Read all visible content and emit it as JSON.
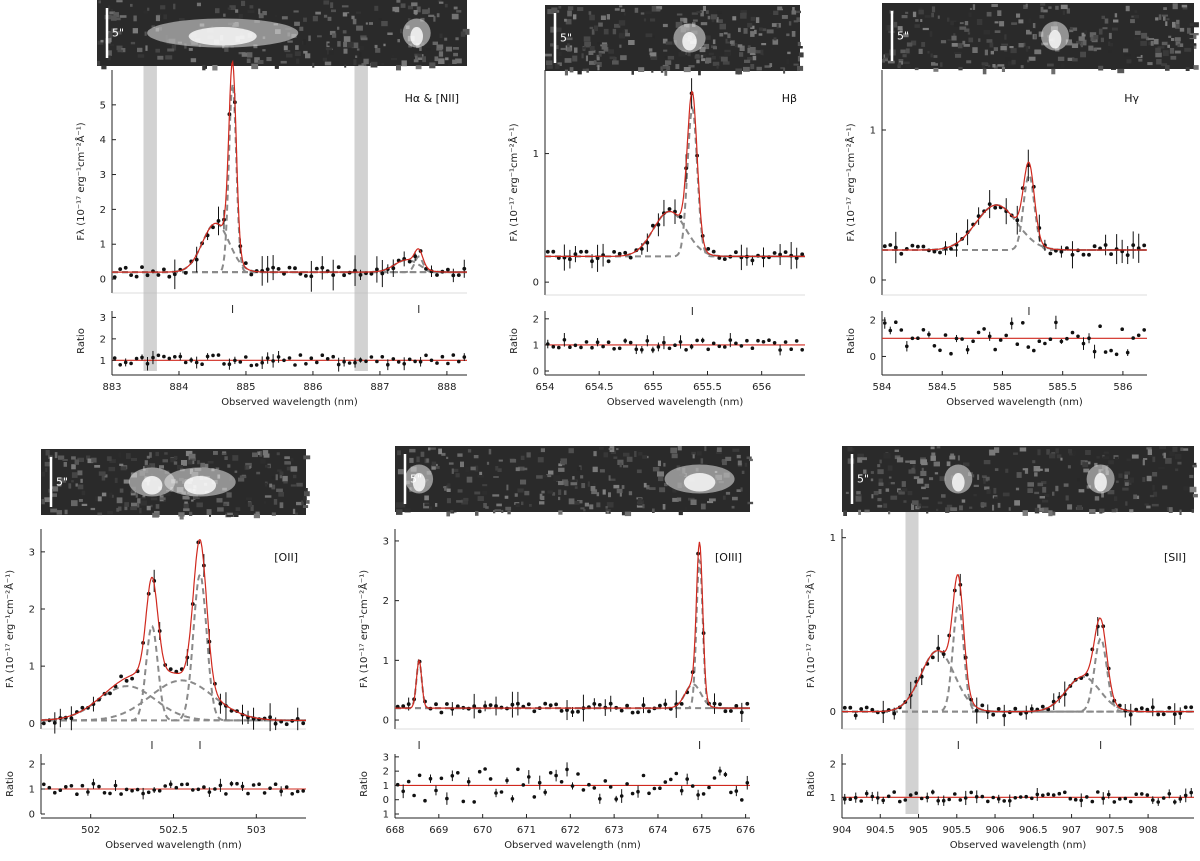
{
  "colors": {
    "fit": "#d0281e",
    "component": "#8a8a8a",
    "points": "#111111",
    "mask": "#d2d2d2",
    "frame": "#222222"
  },
  "chart_data": [
    {
      "type": "line",
      "line_label": "Hα & [NII]",
      "scale_label": "5\"",
      "xlabel": "Observed wavelength (nm)",
      "ylabel": "Fλ (10⁻¹⁷ erg⁻¹cm⁻²Å⁻¹)",
      "ratio_label": "Ratio",
      "xlim": [
        883.0,
        888.3
      ],
      "ylim": [
        -0.4,
        6.0
      ],
      "ratio_ylim": [
        0.5,
        3.3
      ],
      "x_ticks": [
        883,
        884,
        885,
        886,
        887,
        888
      ],
      "y_ticks": [
        0,
        1,
        2,
        3,
        4,
        5
      ],
      "ratio_ticks": [
        1,
        2,
        3
      ],
      "continuum": 0.2,
      "masked_regions": [
        [
          883.47,
          883.67
        ],
        [
          886.62,
          886.82
        ]
      ],
      "components": [
        {
          "center": 884.8,
          "amplitude": 5.4,
          "sigma": 0.055
        },
        {
          "center": 884.55,
          "amplitude": 1.4,
          "sigma": 0.2
        },
        {
          "center": 887.58,
          "amplitude": 0.45,
          "sigma": 0.06
        },
        {
          "center": 887.4,
          "amplitude": 0.35,
          "sigma": 0.18
        }
      ]
    },
    {
      "type": "line",
      "line_label": "Hβ",
      "scale_label": "5\"",
      "xlabel": "Observed wavelength (nm)",
      "ylabel": "Fλ (10⁻¹⁷ erg⁻¹cm⁻²Å⁻¹)",
      "ratio_label": "Ratio",
      "xlim": [
        654.0,
        656.4
      ],
      "ylim": [
        -0.1,
        1.65
      ],
      "ratio_ylim": [
        0.0,
        2.3
      ],
      "x_ticks": [
        654,
        654.5,
        655,
        655.5,
        656
      ],
      "y_ticks": [
        0,
        1
      ],
      "ratio_ticks": [
        0,
        1,
        2
      ],
      "continuum": 0.2,
      "masked_regions": [],
      "components": [
        {
          "center": 655.36,
          "amplitude": 1.15,
          "sigma": 0.045
        },
        {
          "center": 655.15,
          "amplitude": 0.35,
          "sigma": 0.15
        }
      ]
    },
    {
      "type": "line",
      "line_label": "Hγ",
      "scale_label": "5\"",
      "xlabel": "Observed wavelength (nm)",
      "ylabel": "Fλ (10⁻¹⁷ erg⁻¹cm⁻²Å⁻¹)",
      "ratio_label": "Ratio",
      "xlim": [
        584.0,
        586.2
      ],
      "ylim": [
        -0.1,
        1.4
      ],
      "ratio_ylim": [
        -0.8,
        2.5
      ],
      "x_ticks": [
        584,
        584.5,
        585,
        585.5,
        586
      ],
      "y_ticks": [
        0,
        1
      ],
      "ratio_ticks": [
        0,
        2
      ],
      "continuum": 0.2,
      "masked_regions": [],
      "components": [
        {
          "center": 585.22,
          "amplitude": 0.5,
          "sigma": 0.045
        },
        {
          "center": 584.95,
          "amplitude": 0.3,
          "sigma": 0.17
        }
      ]
    },
    {
      "type": "line",
      "line_label": "[OII]",
      "scale_label": "5\"",
      "xlabel": "Observed wavelength (nm)",
      "ylabel": "Fλ (10⁻¹⁷ erg⁻¹cm⁻²Å⁻¹)",
      "ratio_label": "Ratio",
      "xlim": [
        501.7,
        503.3
      ],
      "ylim": [
        -0.1,
        3.4
      ],
      "ratio_ylim": [
        0.0,
        2.4
      ],
      "x_ticks": [
        502,
        502.5,
        503
      ],
      "y_ticks": [
        0,
        1,
        2,
        3
      ],
      "ratio_ticks": [
        0,
        1,
        2
      ],
      "continuum": 0.05,
      "masked_regions": [],
      "components": [
        {
          "center": 502.37,
          "amplitude": 1.65,
          "sigma": 0.035
        },
        {
          "center": 502.66,
          "amplitude": 2.55,
          "sigma": 0.04
        },
        {
          "center": 502.22,
          "amplitude": 0.6,
          "sigma": 0.17
        },
        {
          "center": 502.55,
          "amplitude": 0.7,
          "sigma": 0.19
        }
      ]
    },
    {
      "type": "line",
      "line_label": "[OIII]",
      "scale_label": "5\"",
      "xlabel": "Observed wavelength (nm)",
      "ylabel": "Fλ (10⁻¹⁷ erg⁻¹cm⁻²Å⁻¹)",
      "ratio_label": "Ratio",
      "xlim": [
        668.0,
        676.1
      ],
      "ylim": [
        -0.15,
        3.2
      ],
      "ratio_ylim": [
        -1.0,
        3.2
      ],
      "x_ticks": [
        668,
        669,
        670,
        671,
        672,
        673,
        674,
        675,
        676
      ],
      "y_ticks": [
        0,
        1,
        2,
        3
      ],
      "ratio_ticks": [
        1,
        0,
        1,
        2,
        3
      ],
      "continuum": 0.2,
      "masked_regions": [],
      "components": [
        {
          "center": 668.55,
          "amplitude": 0.8,
          "sigma": 0.06
        },
        {
          "center": 674.95,
          "amplitude": 2.5,
          "sigma": 0.07
        },
        {
          "center": 674.8,
          "amplitude": 0.4,
          "sigma": 0.18
        }
      ]
    },
    {
      "type": "line",
      "line_label": "[SII]",
      "scale_label": "5\"",
      "xlabel": "Observed wavelength (nm)",
      "ylabel": "Fλ (10⁻¹⁷ erg⁻¹cm⁻²Å⁻¹)",
      "ratio_label": "Ratio",
      "xlim": [
        904.0,
        908.6
      ],
      "ylim": [
        -0.1,
        1.05
      ],
      "ratio_ylim": [
        0.5,
        2.3
      ],
      "x_ticks": [
        904,
        904.5,
        905,
        905.5,
        906,
        906.5,
        907,
        907.5,
        908
      ],
      "y_ticks": [
        0,
        1
      ],
      "ratio_ticks": [
        1,
        2
      ],
      "continuum": 0.0,
      "masked_regions": [
        [
          904.83,
          905.0
        ]
      ],
      "components": [
        {
          "center": 905.52,
          "amplitude": 0.62,
          "sigma": 0.07
        },
        {
          "center": 905.25,
          "amplitude": 0.35,
          "sigma": 0.22
        },
        {
          "center": 907.38,
          "amplitude": 0.42,
          "sigma": 0.08
        },
        {
          "center": 907.15,
          "amplitude": 0.2,
          "sigma": 0.22
        }
      ]
    }
  ]
}
